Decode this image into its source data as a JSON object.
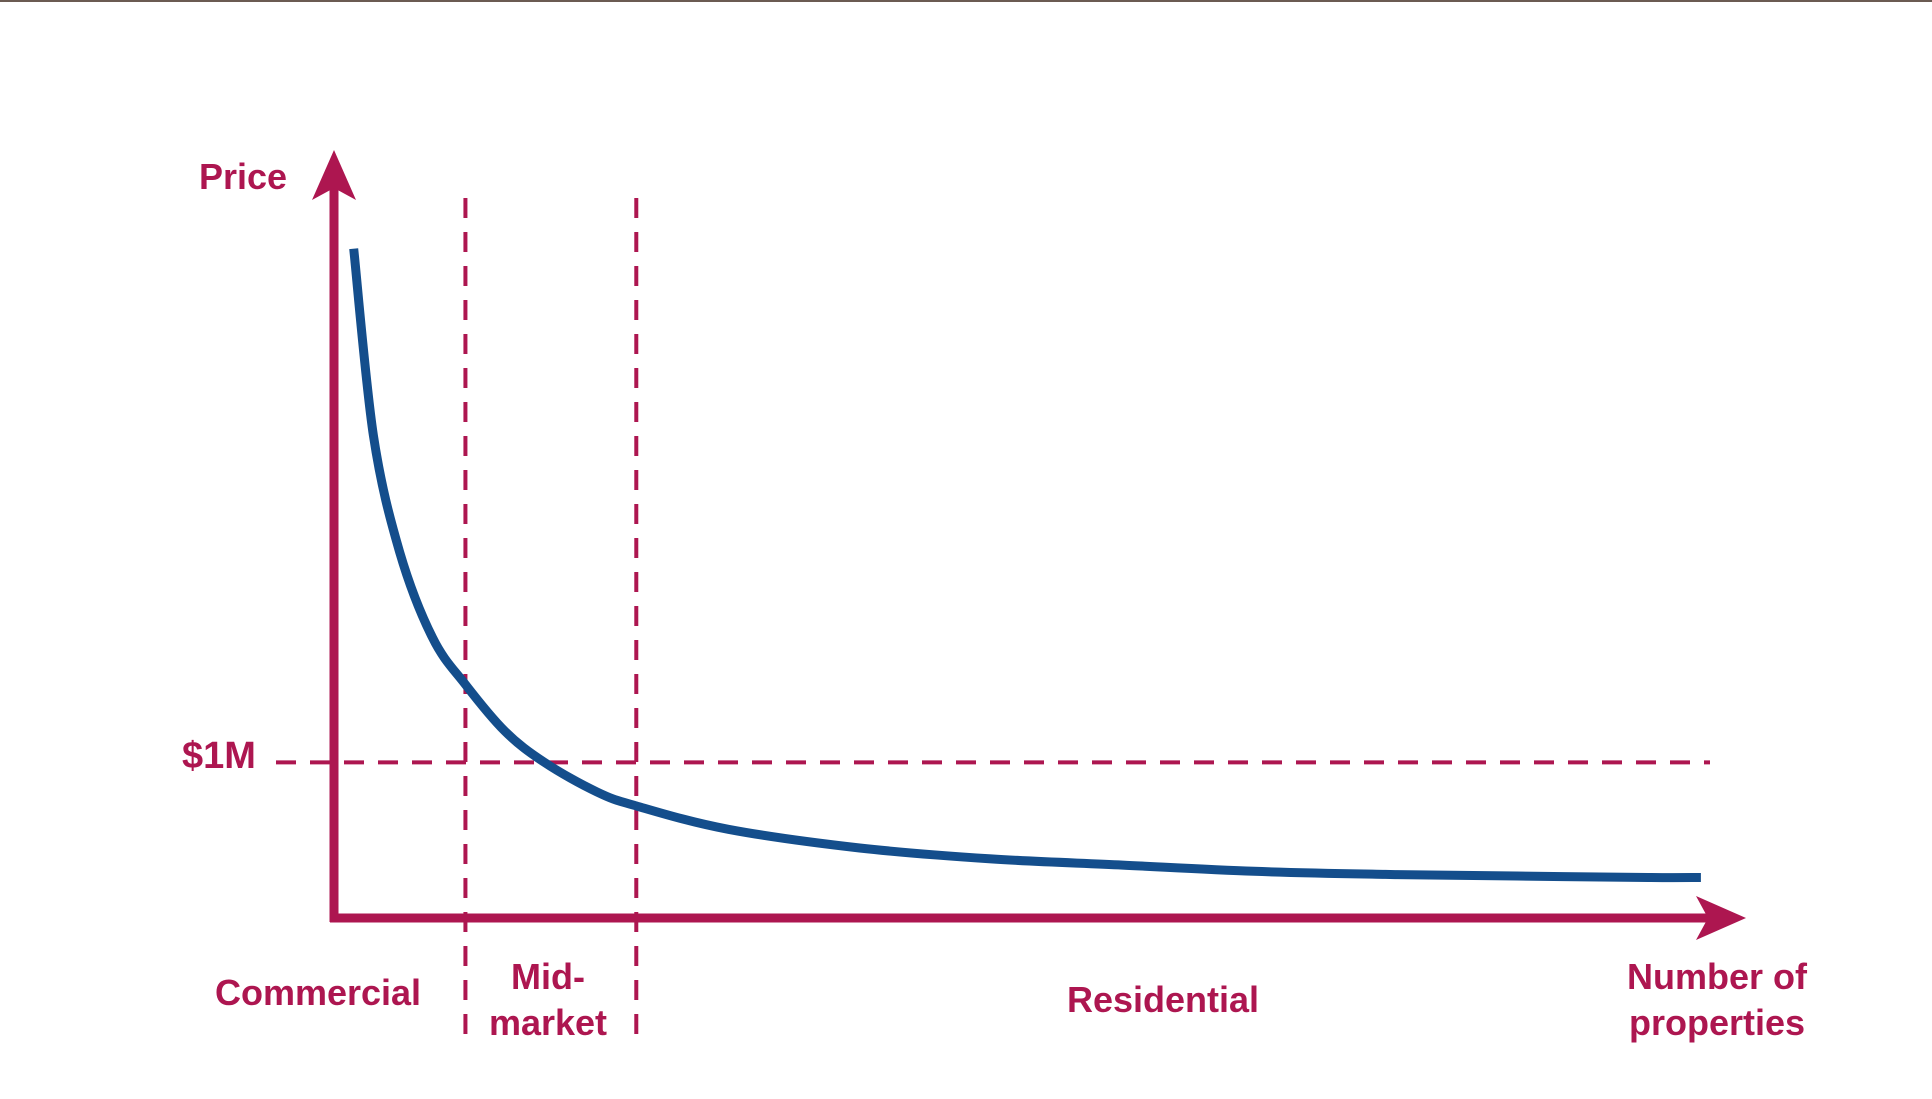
{
  "colors": {
    "axis": "#ad1650",
    "curve": "#144e8c",
    "background": "#ffffff",
    "top_strip": "#6b5b52"
  },
  "chart_data": {
    "type": "line",
    "title": "",
    "xlabel": "Number of properties",
    "ylabel": "Price",
    "grid": false,
    "legend": "none",
    "axis_ticks": false,
    "y_reference": {
      "label": "$1M",
      "value": 1.0
    },
    "segments": [
      {
        "label": "Commercial"
      },
      {
        "label": "Mid-market"
      },
      {
        "label": "Residential"
      }
    ],
    "segment_boundaries": [
      1.0,
      2.3
    ],
    "xlim": [
      0,
      10.5
    ],
    "ylim": [
      0,
      4.6
    ],
    "series": [
      {
        "shape": "reciprocal decay",
        "x": [
          0.15,
          0.3,
          0.5,
          0.75,
          1.0,
          1.3,
          1.6,
          2.0,
          2.3,
          3.0,
          4.0,
          5.0,
          6.0,
          7.0,
          8.0,
          9.0,
          10.0,
          10.4
        ],
        "y": [
          4.3,
          3.1,
          2.35,
          1.8,
          1.5,
          1.2,
          1.0,
          0.81,
          0.72,
          0.57,
          0.45,
          0.38,
          0.34,
          0.3,
          0.28,
          0.27,
          0.26,
          0.26
        ]
      }
    ]
  },
  "labels": {
    "y_axis": "Price",
    "x_axis_line1": "Number of",
    "x_axis_line2": "properties",
    "ref_value": "$1M",
    "commercial": "Commercial",
    "mid_line1": "Mid-",
    "mid_line2": "market",
    "residential": "Residential"
  }
}
